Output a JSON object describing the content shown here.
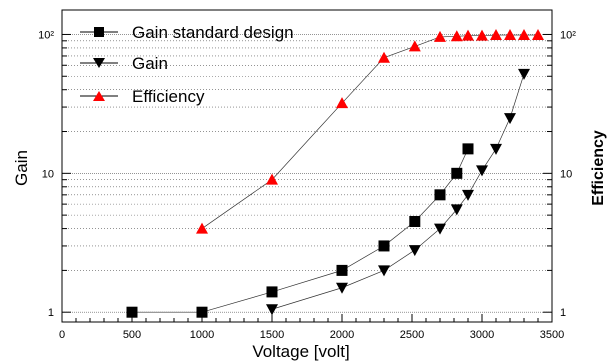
{
  "chart_data": {
    "type": "scatter",
    "title": "",
    "xlabel": "Voltage [volt]",
    "ylabel": "Gain",
    "ylabel_right": "Efficiency",
    "xlim": [
      0,
      3500
    ],
    "ylim": [
      0.85,
      150
    ],
    "y_scale": "log",
    "x_ticks": [
      0,
      500,
      1000,
      1500,
      2000,
      2500,
      3000,
      3500
    ],
    "x_tick_labels": [
      "0",
      "500",
      "1000",
      "1500",
      "2000",
      "2500",
      "3000",
      "3500"
    ],
    "y_ticks": [
      1,
      10,
      100
    ],
    "y_tick_labels": [
      "1",
      "10",
      "10²"
    ],
    "grid": "horizontal dotted",
    "legend_position": "top-left",
    "series": [
      {
        "name": "Gain standard design",
        "marker": "square",
        "color": "#000000",
        "x": [
          500,
          1000,
          1500,
          2000,
          2300,
          2520,
          2700,
          2820,
          2900
        ],
        "y": [
          1.0,
          1.0,
          1.4,
          2.0,
          3.0,
          4.5,
          7.0,
          10.0,
          15.0
        ]
      },
      {
        "name": "Gain",
        "marker": "triangle-down",
        "color": "#000000",
        "x": [
          1500,
          2000,
          2300,
          2520,
          2700,
          2820,
          2900,
          3000,
          3100,
          3200,
          3300
        ],
        "y": [
          1.05,
          1.5,
          2.0,
          2.8,
          4.0,
          5.5,
          7.0,
          10.5,
          15.0,
          25.0,
          52.0
        ]
      },
      {
        "name": "Efficiency",
        "marker": "triangle-up",
        "color": "#ff0000",
        "x": [
          1000,
          1500,
          2000,
          2300,
          2520,
          2700,
          2820,
          2900,
          3000,
          3100,
          3200,
          3300,
          3400
        ],
        "y": [
          4.0,
          9.0,
          32.0,
          68.0,
          82.0,
          96.0,
          97.0,
          98.0,
          98.0,
          99.0,
          99.0,
          99.0,
          99.0
        ]
      }
    ],
    "right_axis_ticks": [
      1,
      10,
      100
    ],
    "right_axis_tick_labels": [
      "1",
      "10",
      "10²"
    ]
  }
}
